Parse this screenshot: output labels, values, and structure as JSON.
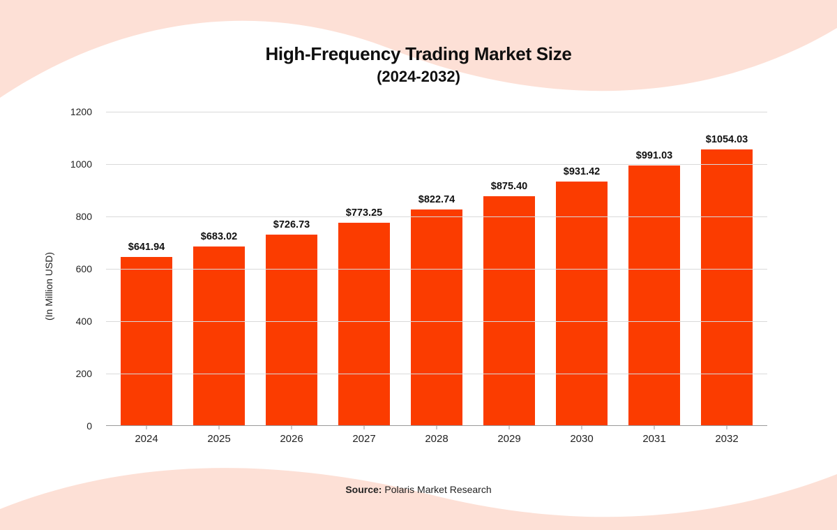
{
  "title": "High-Frequency Trading Market Size",
  "subtitle": "(2024-2032)",
  "source_label": "Source:",
  "source_name": "Polaris Market Research",
  "chart": {
    "type": "bar",
    "y_axis": {
      "label": "(In Million USD)",
      "min": 0,
      "max": 1200,
      "tick_step": 200,
      "ticks": [
        0,
        200,
        400,
        600,
        800,
        1000,
        1200
      ],
      "label_fontsize": 14
    },
    "x_axis": {
      "label_fontsize": 15
    },
    "categories": [
      "2024",
      "2025",
      "2026",
      "2027",
      "2028",
      "2029",
      "2030",
      "2031",
      "2032"
    ],
    "values": [
      641.94,
      683.02,
      726.73,
      773.25,
      822.74,
      875.4,
      931.42,
      991.03,
      1054.03
    ],
    "value_labels": [
      "$641.94",
      "$683.02",
      "$726.73",
      "$773.25",
      "$822.74",
      "$875.40",
      "$931.42",
      "$991.03",
      "$1054.03"
    ],
    "bar_color": "#fb3c00",
    "bar_width_ratio": 0.72,
    "grid_color": "#d9d9d9",
    "axis_color": "#999999",
    "background_color": "#ffffff",
    "wave_color": "#fde0d6",
    "value_label_fontsize": 14.5,
    "value_label_fontweight": 700,
    "title_fontsize": 26,
    "subtitle_fontsize": 22,
    "title_color": "#0f0f0f"
  }
}
